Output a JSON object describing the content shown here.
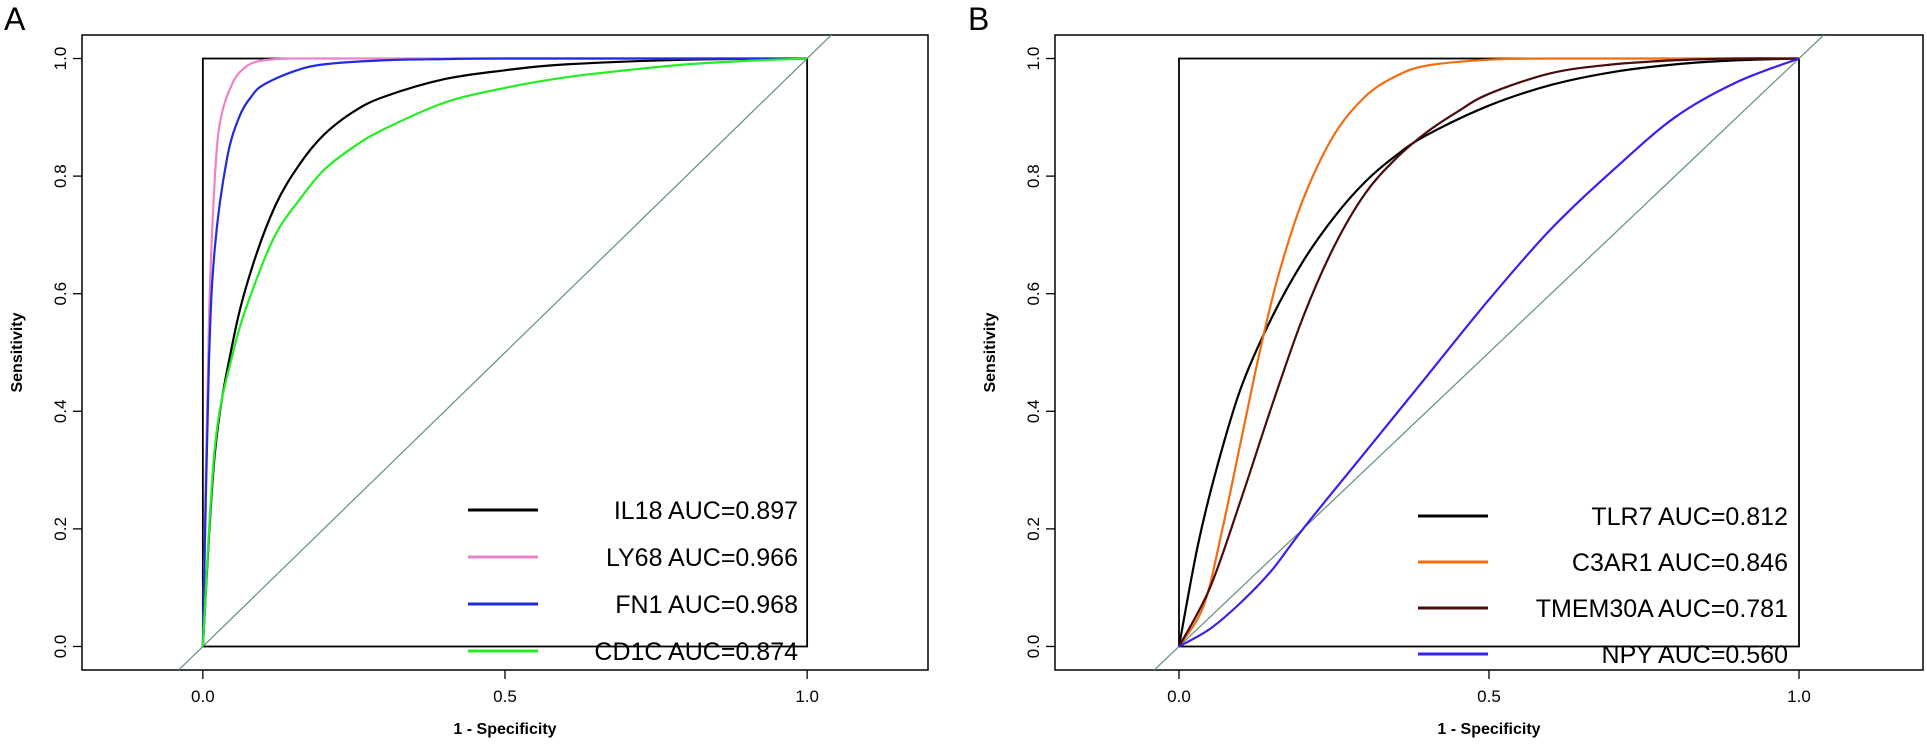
{
  "chart_data": [
    {
      "type": "line",
      "panel_label": "A",
      "xlabel": "1 - Specificity",
      "ylabel": "Sensitivity",
      "xlim": [
        -0.2,
        1.2
      ],
      "ylim": [
        -0.04,
        1.04
      ],
      "xticks": [
        0.0,
        0.5,
        1.0
      ],
      "xtick_labels": [
        "0.0",
        "0.5",
        "1.0"
      ],
      "yticks": [
        0.0,
        0.2,
        0.4,
        0.6,
        0.8,
        1.0
      ],
      "ytick_labels": [
        "0.0",
        "0.2",
        "0.4",
        "0.6",
        "0.8",
        "1.0"
      ],
      "legend_position": "bottom-right",
      "reference_line_color": "#5f8f80",
      "series": [
        {
          "name": "IL18 AUC=0.897",
          "color": "#000000",
          "x": [
            0,
            0.02,
            0.05,
            0.08,
            0.12,
            0.16,
            0.2,
            0.25,
            0.3,
            0.4,
            0.5,
            0.6,
            0.8,
            1.0
          ],
          "y": [
            0,
            0.33,
            0.52,
            0.64,
            0.75,
            0.82,
            0.87,
            0.91,
            0.935,
            0.965,
            0.98,
            0.99,
            0.998,
            1.0
          ]
        },
        {
          "name": "LY68 AUC=0.966",
          "color": "#ee82c8",
          "x": [
            0,
            0.01,
            0.02,
            0.03,
            0.05,
            0.07,
            0.09,
            0.12,
            0.15,
            0.2,
            0.5,
            1.0
          ],
          "y": [
            0,
            0.55,
            0.8,
            0.9,
            0.96,
            0.985,
            0.995,
            0.999,
            1.0,
            1.0,
            1.0,
            1.0
          ]
        },
        {
          "name": "FN1 AUC=0.968",
          "color": "#1f2bdd",
          "x": [
            0,
            0.01,
            0.02,
            0.04,
            0.06,
            0.08,
            0.1,
            0.15,
            0.2,
            0.3,
            0.4,
            0.5,
            1.0
          ],
          "y": [
            0,
            0.48,
            0.68,
            0.83,
            0.9,
            0.935,
            0.955,
            0.978,
            0.99,
            0.997,
            0.999,
            1.0,
            1.0
          ]
        },
        {
          "name": "CD1C  AUC=0.874",
          "color": "#22ee22",
          "x": [
            0,
            0.02,
            0.05,
            0.08,
            0.12,
            0.16,
            0.2,
            0.25,
            0.3,
            0.4,
            0.5,
            0.6,
            0.7,
            0.8,
            0.9,
            1.0
          ],
          "y": [
            0,
            0.34,
            0.5,
            0.6,
            0.7,
            0.76,
            0.81,
            0.85,
            0.88,
            0.925,
            0.95,
            0.968,
            0.98,
            0.99,
            0.996,
            1.0
          ]
        }
      ]
    },
    {
      "type": "line",
      "panel_label": "B",
      "xlabel": "1 - Specificity",
      "ylabel": "Sensitivity",
      "xlim": [
        -0.2,
        1.2
      ],
      "ylim": [
        -0.04,
        1.04
      ],
      "xticks": [
        0.0,
        0.5,
        1.0
      ],
      "xtick_labels": [
        "0.0",
        "0.5",
        "1.0"
      ],
      "yticks": [
        0.0,
        0.2,
        0.4,
        0.6,
        0.8,
        1.0
      ],
      "ytick_labels": [
        "0.0",
        "0.2",
        "0.4",
        "0.6",
        "0.8",
        "1.0"
      ],
      "legend_position": "bottom-right",
      "reference_line_color": "#5f8f80",
      "series": [
        {
          "name": "TLR7 AUC=0.812",
          "color": "#000000",
          "x": [
            0,
            0.03,
            0.06,
            0.1,
            0.15,
            0.2,
            0.25,
            0.3,
            0.35,
            0.4,
            0.5,
            0.6,
            0.7,
            0.8,
            0.9,
            1.0
          ],
          "y": [
            0,
            0.17,
            0.3,
            0.44,
            0.56,
            0.655,
            0.73,
            0.79,
            0.835,
            0.87,
            0.92,
            0.955,
            0.977,
            0.99,
            0.997,
            1.0
          ]
        },
        {
          "name": "C3AR1 AUC=0.846",
          "color": "#f26d12",
          "x": [
            0,
            0.04,
            0.07,
            0.1,
            0.13,
            0.16,
            0.2,
            0.25,
            0.3,
            0.35,
            0.4,
            0.5,
            0.6,
            0.8,
            1.0
          ],
          "y": [
            0,
            0.07,
            0.2,
            0.35,
            0.5,
            0.63,
            0.76,
            0.87,
            0.935,
            0.97,
            0.988,
            0.998,
            1.0,
            1.0,
            1.0
          ]
        },
        {
          "name": "TMEM30A AUC=0.781",
          "color": "#4a0c0c",
          "x": [
            0,
            0.05,
            0.1,
            0.15,
            0.2,
            0.25,
            0.3,
            0.35,
            0.4,
            0.45,
            0.5,
            0.6,
            0.7,
            0.8,
            0.9,
            1.0
          ],
          "y": [
            0,
            0.1,
            0.25,
            0.41,
            0.56,
            0.68,
            0.77,
            0.83,
            0.875,
            0.91,
            0.94,
            0.975,
            0.99,
            0.997,
            1.0,
            1.0
          ]
        },
        {
          "name": "NPY AUC=0.560",
          "color": "#3a1ff2",
          "x": [
            0,
            0.05,
            0.1,
            0.15,
            0.2,
            0.3,
            0.4,
            0.5,
            0.6,
            0.7,
            0.8,
            0.9,
            1.0
          ],
          "y": [
            0,
            0.03,
            0.075,
            0.13,
            0.2,
            0.33,
            0.46,
            0.59,
            0.71,
            0.81,
            0.9,
            0.96,
            1.0
          ]
        }
      ]
    }
  ]
}
